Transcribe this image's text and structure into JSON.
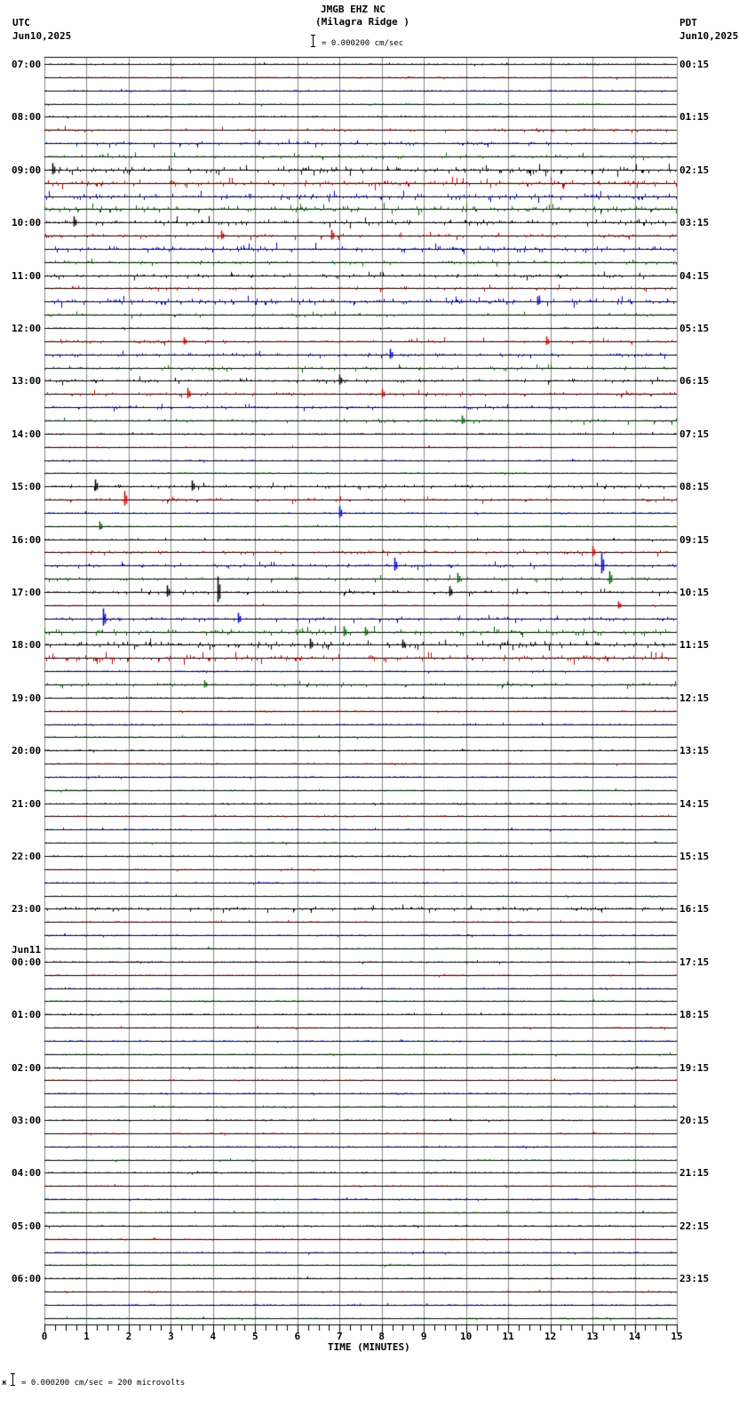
{
  "header": {
    "station": "JMGB EHZ NC",
    "location": "(Milagra Ridge )",
    "left_tz": "UTC",
    "left_date": "Jun10,2025",
    "right_tz": "PDT",
    "right_date": "Jun10,2025",
    "scale_text": "= 0.000200 cm/sec"
  },
  "footer": {
    "scale_prefix": "ж",
    "scale_text": "= 0.000200 cm/sec =     200 microvolts"
  },
  "chart_data": {
    "type": "line",
    "title": "JMGB EHZ NC (Milagra Ridge )",
    "xlabel": "TIME (MINUTES)",
    "ylabel": "",
    "xlim": [
      0,
      15
    ],
    "x_ticks": [
      "0",
      "1",
      "2",
      "3",
      "4",
      "5",
      "6",
      "7",
      "8",
      "9",
      "10",
      "11",
      "12",
      "13",
      "14",
      "15"
    ],
    "trace_count": 96,
    "trace_interval_minutes": 15,
    "trace_colors": [
      "#000000",
      "#cc0000",
      "#0000cc",
      "#006600"
    ],
    "grid": true,
    "left_labels": [
      {
        "row": 0,
        "text": "07:00"
      },
      {
        "row": 4,
        "text": "08:00"
      },
      {
        "row": 8,
        "text": "09:00"
      },
      {
        "row": 12,
        "text": "10:00"
      },
      {
        "row": 16,
        "text": "11:00"
      },
      {
        "row": 20,
        "text": "12:00"
      },
      {
        "row": 24,
        "text": "13:00"
      },
      {
        "row": 28,
        "text": "14:00"
      },
      {
        "row": 32,
        "text": "15:00"
      },
      {
        "row": 36,
        "text": "16:00"
      },
      {
        "row": 40,
        "text": "17:00"
      },
      {
        "row": 44,
        "text": "18:00"
      },
      {
        "row": 48,
        "text": "19:00"
      },
      {
        "row": 52,
        "text": "20:00"
      },
      {
        "row": 56,
        "text": "21:00"
      },
      {
        "row": 60,
        "text": "22:00"
      },
      {
        "row": 64,
        "text": "23:00"
      },
      {
        "row": 68,
        "text": "00:00",
        "date": "Jun11"
      },
      {
        "row": 72,
        "text": "01:00"
      },
      {
        "row": 76,
        "text": "02:00"
      },
      {
        "row": 80,
        "text": "03:00"
      },
      {
        "row": 84,
        "text": "04:00"
      },
      {
        "row": 88,
        "text": "05:00"
      },
      {
        "row": 92,
        "text": "06:00"
      }
    ],
    "right_labels": [
      {
        "row": 0,
        "text": "00:15"
      },
      {
        "row": 4,
        "text": "01:15"
      },
      {
        "row": 8,
        "text": "02:15"
      },
      {
        "row": 12,
        "text": "03:15"
      },
      {
        "row": 16,
        "text": "04:15"
      },
      {
        "row": 20,
        "text": "05:15"
      },
      {
        "row": 24,
        "text": "06:15"
      },
      {
        "row": 28,
        "text": "07:15"
      },
      {
        "row": 32,
        "text": "08:15"
      },
      {
        "row": 36,
        "text": "09:15"
      },
      {
        "row": 40,
        "text": "10:15"
      },
      {
        "row": 44,
        "text": "11:15"
      },
      {
        "row": 48,
        "text": "12:15"
      },
      {
        "row": 52,
        "text": "13:15"
      },
      {
        "row": 56,
        "text": "14:15"
      },
      {
        "row": 60,
        "text": "15:15"
      },
      {
        "row": 64,
        "text": "16:15"
      },
      {
        "row": 68,
        "text": "17:15"
      },
      {
        "row": 72,
        "text": "18:15"
      },
      {
        "row": 76,
        "text": "19:15"
      },
      {
        "row": 80,
        "text": "20:15"
      },
      {
        "row": 84,
        "text": "21:15"
      },
      {
        "row": 88,
        "text": "22:15"
      },
      {
        "row": 92,
        "text": "23:15"
      }
    ],
    "row_activity": [
      1,
      1,
      1,
      1,
      1,
      2,
      2,
      2,
      3,
      3,
      3,
      3,
      3,
      2,
      3,
      2,
      2,
      2,
      3,
      2,
      1,
      2,
      2,
      2,
      2,
      2,
      2,
      2,
      1,
      1,
      1,
      1,
      2,
      2,
      1,
      1,
      1,
      2,
      2,
      2,
      2,
      1,
      2,
      3,
      3,
      3,
      1,
      2,
      1,
      1,
      1,
      1,
      1,
      1,
      1,
      1,
      1,
      1,
      1,
      1,
      1,
      1,
      1,
      1,
      2,
      1,
      1,
      1,
      1,
      1,
      1,
      1,
      1,
      1,
      1,
      1,
      1,
      1,
      1,
      1,
      1,
      1,
      1,
      1,
      1,
      1,
      1,
      1,
      1,
      1,
      1,
      1,
      1,
      1,
      1,
      1
    ],
    "events": [
      {
        "row": 8,
        "minute": 0.2,
        "amp": 8
      },
      {
        "row": 12,
        "minute": 0.7,
        "amp": 7
      },
      {
        "row": 13,
        "minute": 4.2,
        "amp": 6
      },
      {
        "row": 13,
        "minute": 6.8,
        "amp": 7
      },
      {
        "row": 18,
        "minute": 11.7,
        "amp": 6
      },
      {
        "row": 21,
        "minute": 3.3,
        "amp": 5
      },
      {
        "row": 21,
        "minute": 11.9,
        "amp": 6
      },
      {
        "row": 22,
        "minute": 8.2,
        "amp": 7
      },
      {
        "row": 24,
        "minute": 7.0,
        "amp": 7
      },
      {
        "row": 25,
        "minute": 3.4,
        "amp": 7
      },
      {
        "row": 25,
        "minute": 8.0,
        "amp": 6
      },
      {
        "row": 27,
        "minute": 9.9,
        "amp": 6
      },
      {
        "row": 32,
        "minute": 1.2,
        "amp": 8
      },
      {
        "row": 32,
        "minute": 3.5,
        "amp": 7
      },
      {
        "row": 33,
        "minute": 1.9,
        "amp": 10
      },
      {
        "row": 34,
        "minute": 7.0,
        "amp": 8
      },
      {
        "row": 35,
        "minute": 1.3,
        "amp": 6
      },
      {
        "row": 37,
        "minute": 13.0,
        "amp": 7
      },
      {
        "row": 38,
        "minute": 8.3,
        "amp": 9
      },
      {
        "row": 38,
        "minute": 13.2,
        "amp": 14
      },
      {
        "row": 39,
        "minute": 9.8,
        "amp": 7
      },
      {
        "row": 39,
        "minute": 13.4,
        "amp": 9
      },
      {
        "row": 40,
        "minute": 2.9,
        "amp": 8
      },
      {
        "row": 40,
        "minute": 4.1,
        "amp": 18
      },
      {
        "row": 40,
        "minute": 9.6,
        "amp": 7
      },
      {
        "row": 41,
        "minute": 13.6,
        "amp": 5
      },
      {
        "row": 42,
        "minute": 1.4,
        "amp": 12
      },
      {
        "row": 42,
        "minute": 4.6,
        "amp": 7
      },
      {
        "row": 43,
        "minute": 7.1,
        "amp": 7
      },
      {
        "row": 43,
        "minute": 7.6,
        "amp": 6
      },
      {
        "row": 44,
        "minute": 6.3,
        "amp": 7
      },
      {
        "row": 44,
        "minute": 8.5,
        "amp": 6
      },
      {
        "row": 47,
        "minute": 3.8,
        "amp": 5
      }
    ]
  }
}
